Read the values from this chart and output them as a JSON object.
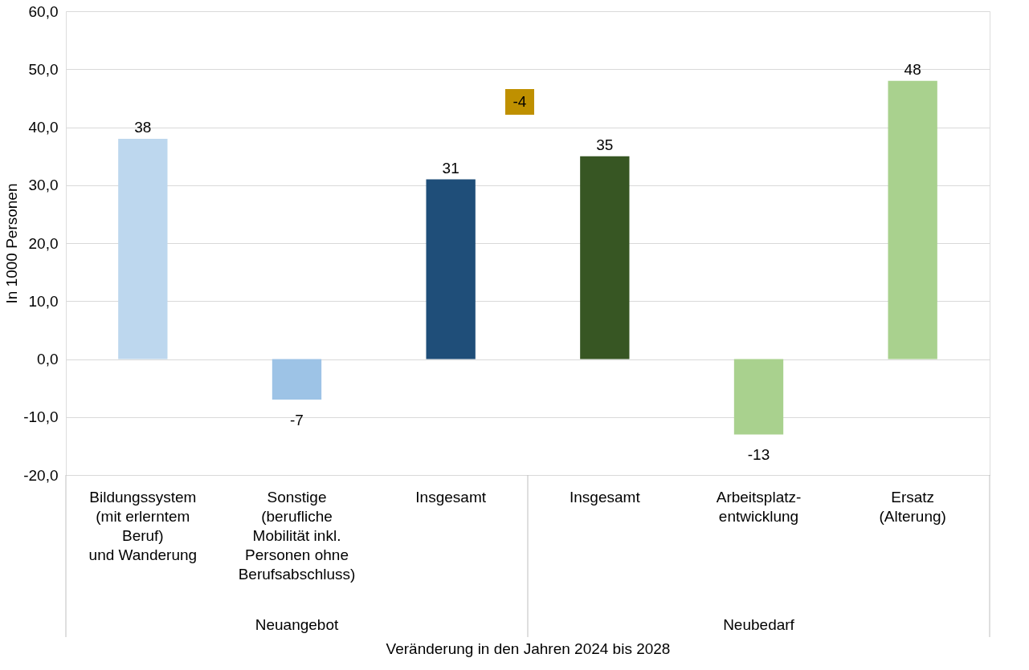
{
  "chart_data": {
    "type": "bar",
    "xlabel": "Veränderung in den Jahren 2024 bis 2028",
    "ylabel": "In 1000 Personen",
    "categories": [
      "Bildungssystem\n(mit erlerntem\nBeruf)\nund Wanderung",
      "Sonstige\n(berufliche\nMobilität inkl.\nPersonen ohne\nBerufsabschluss)",
      "Insgesamt",
      "Insgesamt",
      "Arbeitsplatz-\nentwicklung",
      "Ersatz\n(Alterung)"
    ],
    "values": [
      38,
      -7,
      31,
      35,
      -13,
      48
    ],
    "colors": [
      "#bdd7ee",
      "#9dc3e6",
      "#1f4e79",
      "#375623",
      "#a9d18e",
      "#a9d18e"
    ],
    "ylim": [
      -20,
      60
    ],
    "yticks": [
      {
        "value": -20,
        "label": "-20,0"
      },
      {
        "value": -10,
        "label": "-10,0"
      },
      {
        "value": 0,
        "label": "0,0"
      },
      {
        "value": 10,
        "label": "10,0"
      },
      {
        "value": 20,
        "label": "20,0"
      },
      {
        "value": 30,
        "label": "30,0"
      },
      {
        "value": 40,
        "label": "40,0"
      },
      {
        "value": 50,
        "label": "50,0"
      },
      {
        "value": 60,
        "label": "60,0"
      }
    ],
    "grid": "y",
    "data_labels": true,
    "annotations": [
      "Neuangebot",
      "Neubedarf",
      "-4"
    ]
  }
}
